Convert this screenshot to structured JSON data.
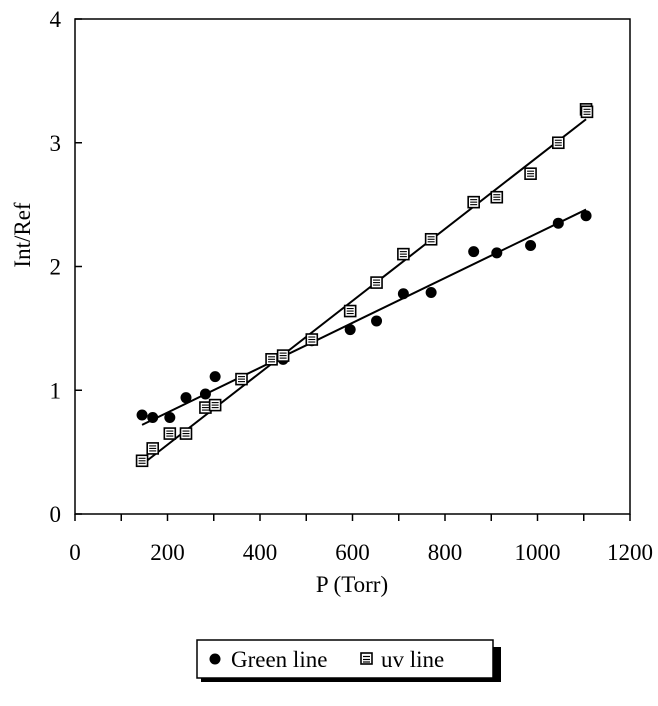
{
  "chart_data": {
    "type": "scatter",
    "xlabel": "P (Torr)",
    "ylabel": "Int/Ref",
    "xlim": [
      0,
      1200
    ],
    "ylim": [
      0,
      4
    ],
    "xticks": [
      0,
      200,
      400,
      600,
      800,
      1000,
      1200
    ],
    "yticks": [
      0,
      1,
      2,
      3,
      4
    ],
    "grid": false,
    "legend_position": "bottom",
    "series": [
      {
        "name": "Green line",
        "marker": "circle",
        "points": [
          [
            145,
            0.8
          ],
          [
            168,
            0.78
          ],
          [
            205,
            0.78
          ],
          [
            240,
            0.94
          ],
          [
            282,
            0.97
          ],
          [
            303,
            1.11
          ],
          [
            425,
            1.25
          ],
          [
            450,
            1.25
          ],
          [
            512,
            1.4
          ],
          [
            595,
            1.49
          ],
          [
            652,
            1.56
          ],
          [
            710,
            1.78
          ],
          [
            770,
            1.79
          ],
          [
            862,
            2.12
          ],
          [
            912,
            2.11
          ],
          [
            985,
            2.17
          ],
          [
            1045,
            2.35
          ],
          [
            1105,
            2.41
          ]
        ],
        "fit": [
          [
            145,
            0.72
          ],
          [
            1105,
            2.46
          ]
        ]
      },
      {
        "name": "uv line",
        "marker": "square",
        "points": [
          [
            145,
            0.43
          ],
          [
            168,
            0.53
          ],
          [
            205,
            0.65
          ],
          [
            240,
            0.65
          ],
          [
            282,
            0.86
          ],
          [
            303,
            0.88
          ],
          [
            360,
            1.09
          ],
          [
            425,
            1.25
          ],
          [
            450,
            1.28
          ],
          [
            512,
            1.41
          ],
          [
            595,
            1.64
          ],
          [
            652,
            1.87
          ],
          [
            710,
            2.1
          ],
          [
            770,
            2.22
          ],
          [
            862,
            2.52
          ],
          [
            912,
            2.56
          ],
          [
            985,
            2.75
          ],
          [
            1045,
            3.0
          ],
          [
            1105,
            3.27
          ],
          [
            1107,
            3.25
          ]
        ],
        "fit": [
          [
            145,
            0.4
          ],
          [
            1105,
            3.19
          ]
        ]
      }
    ]
  }
}
